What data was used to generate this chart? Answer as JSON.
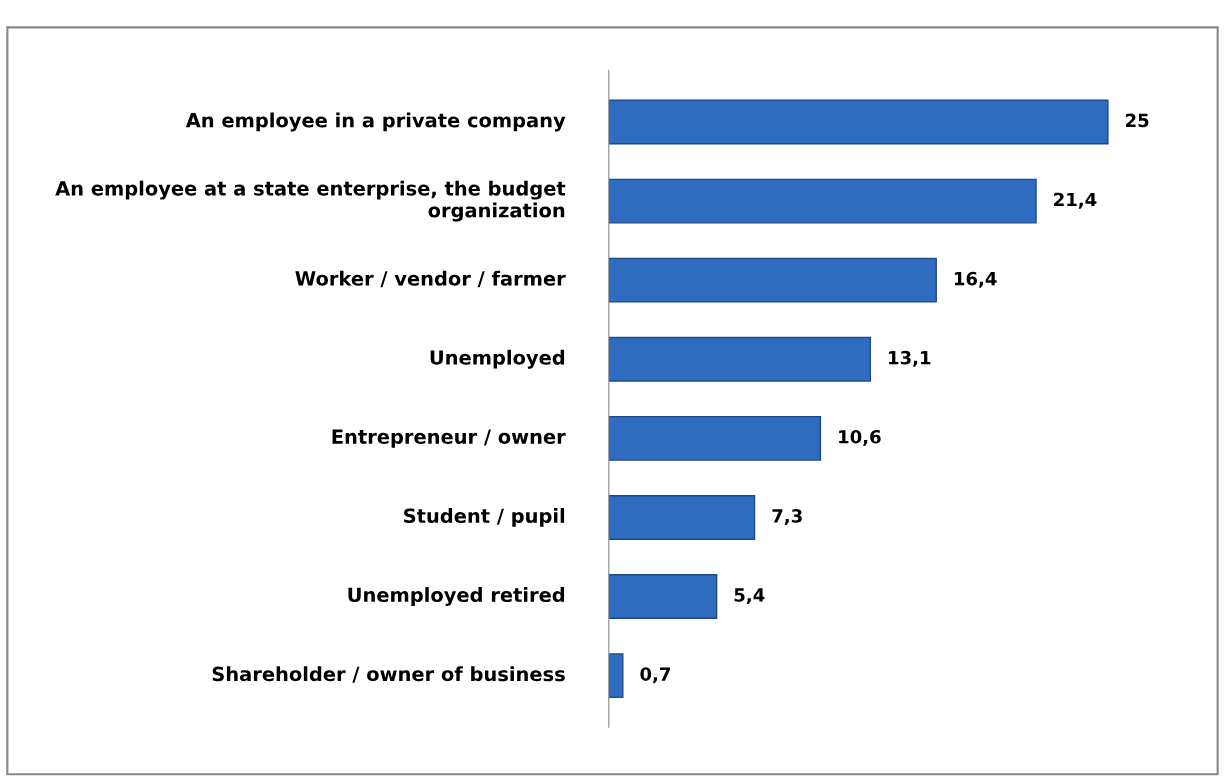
{
  "chart_data": {
    "type": "bar",
    "orientation": "horizontal",
    "categories": [
      "An employee in a private company",
      "An employee at a state enterprise, the budget organization",
      "Worker / vendor / farmer",
      "Unemployed",
      "Entrepreneur / owner",
      "Student / pupil",
      "Unemployed retired",
      "Shareholder / owner of business"
    ],
    "values": [
      25,
      21.4,
      16.4,
      13.1,
      10.6,
      7.3,
      5.4,
      0.7
    ],
    "value_labels": [
      "25",
      "21,4",
      "16,4",
      "13,1",
      "10,6",
      "7,3",
      "5,4",
      "0,7"
    ],
    "color": "#2f6cc0",
    "grid": false,
    "legend": false,
    "tick_labels": "y"
  }
}
